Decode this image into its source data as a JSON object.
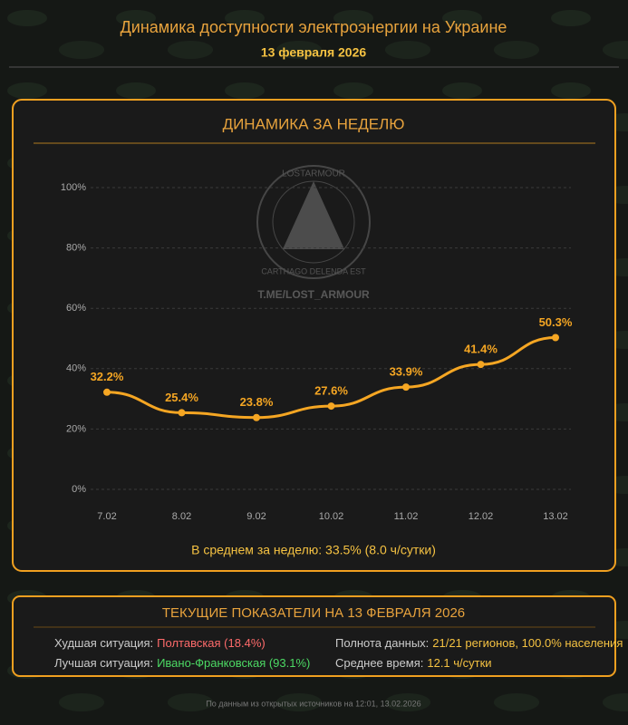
{
  "header": {
    "title": "Динамика доступности электроэнергии на Украине",
    "date": "13 февраля 2026"
  },
  "chart_data": {
    "type": "line",
    "title": "ДИНАМИКА ЗА НЕДЕЛЮ",
    "categories": [
      "7.02",
      "8.02",
      "9.02",
      "10.02",
      "11.02",
      "12.02",
      "13.02"
    ],
    "values": [
      32.2,
      25.4,
      23.8,
      27.6,
      33.9,
      41.4,
      50.3
    ],
    "value_labels": [
      "32.2%",
      "25.4%",
      "23.8%",
      "27.6%",
      "33.9%",
      "41.4%",
      "50.3%"
    ],
    "color": "#f5a623",
    "ylim": [
      0,
      100
    ],
    "yticks": [
      {
        "value": 0,
        "label": "0%"
      },
      {
        "value": 20,
        "label": "20%"
      },
      {
        "value": 40,
        "label": "40%"
      },
      {
        "value": 60,
        "label": "60%"
      },
      {
        "value": 80,
        "label": "80%"
      },
      {
        "value": 100,
        "label": "100%"
      }
    ],
    "grid": true,
    "annotation": "В среднем за неделю: 33.5% (8.0 ч/сутки)"
  },
  "watermark": {
    "ring_top": "LOSTARMOUR",
    "ring_bottom": "CARTHAGO DELENDA EST",
    "link": "T.ME/LOST_ARMOUR"
  },
  "summary": {
    "title": "ТЕКУЩИЕ ПОКАЗАТЕЛИ НА 13 ФЕВРАЛЯ 2026",
    "items": [
      {
        "label": "Худшая ситуация:",
        "value": "Полтавская (18.4%)",
        "color": "#ff6b6b"
      },
      {
        "label": "Лучшая ситуация:",
        "value": "Ивано-Франковская (93.1%)",
        "color": "#4cd964"
      },
      {
        "label": "Полнота данных:",
        "value": "21/21 регионов, 100.0% населения",
        "color": "#f5c242"
      },
      {
        "label": "Среднее время:",
        "value": "12.1 ч/сутки",
        "color": "#f5c242"
      }
    ]
  },
  "footer": "По данным из открытых источников на 12:01, 13.02.2026"
}
